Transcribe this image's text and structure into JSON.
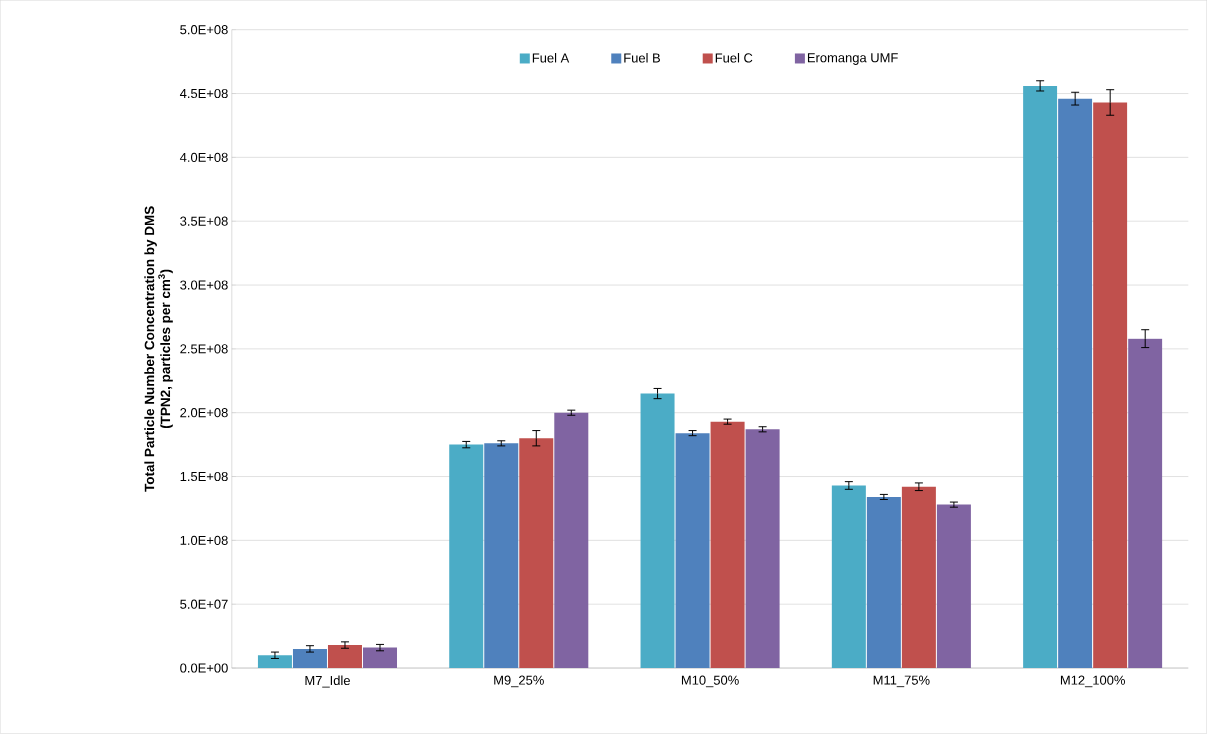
{
  "chart_data": {
    "type": "bar",
    "ylabel": "Total Particle Number Concentration by DMS (TPN2, particles per cm$^{3}$)",
    "categories": [
      "M7_Idle",
      "M9_25%",
      "M10_50%",
      "M11_75%",
      "M12_100%"
    ],
    "series": [
      {
        "name": "Fuel A",
        "color": "#4bacc6",
        "values": [
          10000000,
          175000000,
          215000000,
          143000000,
          456000000
        ],
        "errors": [
          2500000,
          2500000,
          4000000,
          3000000,
          4000000
        ]
      },
      {
        "name": "Fuel B",
        "color": "#4f81bd",
        "values": [
          15000000,
          176000000,
          184000000,
          134000000,
          446000000
        ],
        "errors": [
          2500000,
          2000000,
          2000000,
          2000000,
          5000000
        ]
      },
      {
        "name": "Fuel C",
        "color": "#c0504d",
        "values": [
          18000000,
          180000000,
          193000000,
          142000000,
          443000000
        ],
        "errors": [
          2500000,
          6000000,
          2000000,
          3000000,
          10000000
        ]
      },
      {
        "name": "Eromanga UMF",
        "color": "#8064a2",
        "values": [
          16000000,
          200000000,
          187000000,
          128000000,
          258000000
        ],
        "errors": [
          2500000,
          2000000,
          2000000,
          2000000,
          7000000
        ]
      }
    ],
    "ylim": [
      0,
      500000000
    ],
    "yticks": [
      {
        "value": 0,
        "label": "0.0E+00"
      },
      {
        "value": 50000000,
        "label": "5.0E+07"
      },
      {
        "value": 100000000,
        "label": "1.0E+08"
      },
      {
        "value": 150000000,
        "label": "1.5E+08"
      },
      {
        "value": 200000000,
        "label": "2.0E+08"
      },
      {
        "value": 250000000,
        "label": "2.5E+08"
      },
      {
        "value": 300000000,
        "label": "3.0E+08"
      },
      {
        "value": 350000000,
        "label": "3.5E+08"
      },
      {
        "value": 400000000,
        "label": "4.0E+08"
      },
      {
        "value": 450000000,
        "label": "4.5E+08"
      },
      {
        "value": 500000000,
        "label": "5.0E+08"
      }
    ],
    "grid": "y",
    "legend": "top"
  }
}
